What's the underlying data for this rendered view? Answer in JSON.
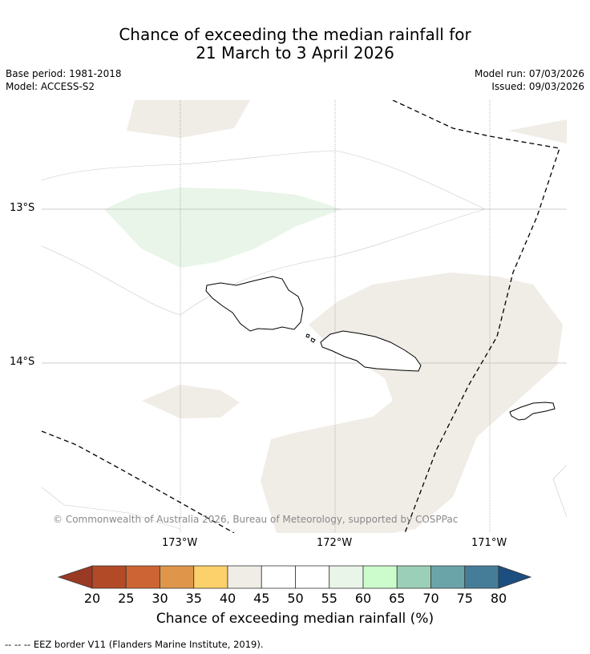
{
  "title": {
    "line1": "Chance of exceeding the median rainfall for",
    "line2": "21 March to 3 April 2026"
  },
  "meta": {
    "base_period": "Base period: 1981-2018",
    "model": "Model: ACCESS-S2",
    "model_run": "Model run: 07/03/2026",
    "issued": "Issued: 09/03/2026"
  },
  "map": {
    "lat_labels": [
      "13°S",
      "14°S"
    ],
    "lon_labels": [
      "173°W",
      "172°W",
      "171°W"
    ],
    "copyright": "© Commonwealth of Australia 2026, Bureau of Meteorology, supported by COSPPac",
    "colors": {
      "band_40_45": "#f0ece6",
      "band_55_60": "#e9f5e8",
      "eez": "#000000",
      "coast": "#000000"
    },
    "regions": [
      {
        "name": "north-west-neutral-patch",
        "value_range": "40-45"
      },
      {
        "name": "north-east-neutral-patch",
        "value_range": "40-45"
      },
      {
        "name": "green-patch",
        "value_range": "55-60"
      },
      {
        "name": "south-east-neutral-region",
        "value_range": "40-45"
      },
      {
        "name": "south-west-neutral-patch",
        "value_range": "40-45"
      }
    ],
    "islands": [
      "Savai'i",
      "Upolu",
      "Tutuila"
    ]
  },
  "colorbar": {
    "ticks": [
      "20",
      "25",
      "30",
      "35",
      "40",
      "45",
      "50",
      "55",
      "60",
      "65",
      "70",
      "75",
      "80"
    ],
    "colors": [
      "#b34a27",
      "#cc6533",
      "#e0964a",
      "#fcd06a",
      "#f0ece6",
      "#ffffff",
      "#ffffff",
      "#e9f5e8",
      "#ccfccc",
      "#9ccfb7",
      "#6ba4a8",
      "#457d99"
    ],
    "under_color": "#9a3a24",
    "over_color": "#1c4f80",
    "label": "Chance of exceeding median rainfall (%)"
  },
  "footnote": "--  --  -- EEZ border V11 (Flanders Marine Institute, 2019)."
}
